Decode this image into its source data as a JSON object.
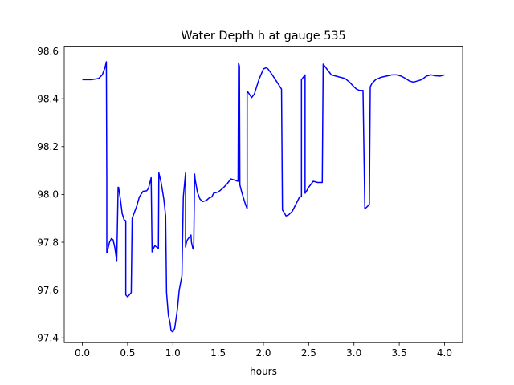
{
  "chart_data": {
    "type": "line",
    "title": "Water Depth h at gauge 535",
    "xlabel": "hours",
    "ylabel": "",
    "xlim": [
      -0.2,
      4.2
    ],
    "ylim": [
      97.38,
      98.62
    ],
    "xticks": [
      0.0,
      0.5,
      1.0,
      1.5,
      2.0,
      2.5,
      3.0,
      3.5,
      4.0
    ],
    "xtick_labels": [
      "0.0",
      "0.5",
      "1.0",
      "1.5",
      "2.0",
      "2.5",
      "3.0",
      "3.5",
      "4.0"
    ],
    "yticks": [
      97.4,
      97.6,
      97.8,
      98.0,
      98.2,
      98.4,
      98.6
    ],
    "ytick_labels": [
      "97.4",
      "97.6",
      "97.8",
      "98.0",
      "98.2",
      "98.4",
      "98.6"
    ],
    "grid": false,
    "line_color": "#0000ff",
    "series": [
      {
        "x": [
          0.0,
          0.1,
          0.18,
          0.22,
          0.25,
          0.265,
          0.27,
          0.27,
          0.275,
          0.3,
          0.32,
          0.34,
          0.36,
          0.38,
          0.395,
          0.4,
          0.42,
          0.44,
          0.46,
          0.48,
          0.48,
          0.5,
          0.53,
          0.54,
          0.55,
          0.6,
          0.63,
          0.67,
          0.71,
          0.73,
          0.76,
          0.77,
          0.77,
          0.78,
          0.8,
          0.82,
          0.84,
          0.845,
          0.87,
          0.9,
          0.92,
          0.93,
          0.95,
          0.97,
          0.98,
          0.99,
          1.0,
          1.02,
          1.05,
          1.07,
          1.1,
          1.115,
          1.14,
          1.14,
          1.15,
          1.16,
          1.18,
          1.2,
          1.205,
          1.22,
          1.23,
          1.24,
          1.245,
          1.27,
          1.3,
          1.33,
          1.37,
          1.4,
          1.43,
          1.45,
          1.5,
          1.55,
          1.6,
          1.64,
          1.68,
          1.72,
          1.725,
          1.735,
          1.74,
          1.76,
          1.8,
          1.82,
          1.82,
          1.825,
          1.87,
          1.9,
          1.95,
          2.0,
          2.03,
          2.05,
          2.08,
          2.15,
          2.2,
          2.21,
          2.22,
          2.25,
          2.28,
          2.32,
          2.36,
          2.4,
          2.42,
          2.42,
          2.44,
          2.46,
          2.46,
          2.47,
          2.5,
          2.55,
          2.6,
          2.65,
          2.66,
          2.67,
          2.7,
          2.75,
          2.8,
          2.85,
          2.9,
          2.95,
          3.0,
          3.03,
          3.06,
          3.1,
          3.12,
          3.15,
          3.17,
          3.18,
          3.2,
          3.24,
          3.3,
          3.36,
          3.42,
          3.47,
          3.52,
          3.57,
          3.61,
          3.65,
          3.68,
          3.75,
          3.8,
          3.85,
          3.9,
          3.95,
          4.0
        ],
        "y": [
          98.48,
          98.48,
          98.485,
          98.5,
          98.53,
          98.555,
          98.07,
          97.755,
          97.76,
          97.8,
          97.815,
          97.81,
          97.775,
          97.72,
          98.03,
          98.03,
          97.98,
          97.92,
          97.895,
          97.89,
          97.58,
          97.572,
          97.585,
          97.59,
          97.9,
          97.95,
          97.99,
          98.013,
          98.015,
          98.025,
          98.07,
          97.765,
          97.76,
          97.77,
          97.785,
          97.78,
          97.775,
          98.09,
          98.05,
          97.98,
          97.91,
          97.59,
          97.495,
          97.46,
          97.43,
          97.427,
          97.425,
          97.44,
          97.52,
          97.6,
          97.66,
          97.99,
          98.09,
          97.78,
          97.8,
          97.81,
          97.82,
          97.83,
          97.8,
          97.775,
          97.77,
          98.085,
          98.065,
          98.01,
          97.98,
          97.97,
          97.975,
          97.985,
          97.99,
          98.005,
          98.01,
          98.025,
          98.045,
          98.065,
          98.06,
          98.055,
          98.55,
          98.535,
          98.04,
          98.01,
          97.96,
          97.94,
          98.43,
          98.43,
          98.405,
          98.42,
          98.48,
          98.525,
          98.53,
          98.525,
          98.51,
          98.47,
          98.44,
          97.935,
          97.93,
          97.91,
          97.915,
          97.93,
          97.96,
          97.99,
          97.99,
          98.48,
          98.49,
          98.5,
          98.005,
          98.01,
          98.03,
          98.055,
          98.05,
          98.05,
          98.545,
          98.54,
          98.525,
          98.5,
          98.495,
          98.49,
          98.485,
          98.47,
          98.45,
          98.44,
          98.435,
          98.435,
          97.94,
          97.95,
          97.96,
          98.45,
          98.465,
          98.48,
          98.49,
          98.495,
          98.5,
          98.5,
          98.495,
          98.485,
          98.475,
          98.47,
          98.472,
          98.48,
          98.495,
          98.5,
          98.496,
          98.495,
          98.5
        ]
      }
    ]
  }
}
